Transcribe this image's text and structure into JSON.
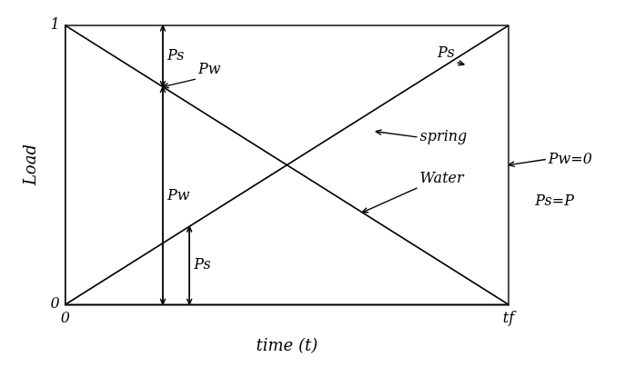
{
  "chart_data": {
    "type": "line",
    "x_label": "time (t)",
    "y_label": "Load",
    "x": [
      0,
      1
    ],
    "series": [
      {
        "name": "Water",
        "color": "#000000",
        "values": [
          1,
          0
        ]
      },
      {
        "name": "Spring",
        "color": "#000000",
        "values": [
          0,
          1
        ]
      }
    ],
    "xlim": [
      0,
      1
    ],
    "xticks": [
      0,
      {
        "value": 1,
        "label": "tf"
      }
    ],
    "ylim": [
      0,
      1
    ],
    "yticks": [
      0,
      1
    ],
    "grid": false,
    "dimensions": [
      {
        "label": "Ps",
        "x": 0.22,
        "from": 1,
        "to": 0.78
      },
      {
        "label": "Pw",
        "x": 0.22,
        "from": 0,
        "to": 0.78
      },
      {
        "label": "Ps",
        "x": 0.28,
        "from": 0,
        "to": 0.28
      }
    ],
    "annotations": [
      {
        "text": "Pw",
        "x": 0.3,
        "y": 0.84,
        "target": [
          0.22,
          0.78
        ]
      },
      {
        "text": "Ps",
        "x": 0.84,
        "y": 0.9,
        "target": [
          0.9,
          0.86
        ]
      },
      {
        "text": "spring",
        "x": 0.8,
        "y": 0.6,
        "target": [
          0.7,
          0.62
        ]
      },
      {
        "text": "Water",
        "x": 0.8,
        "y": 0.45,
        "target": [
          0.67,
          0.33
        ]
      },
      {
        "text": "Pw=0",
        "x": 1.09,
        "y": 0.52,
        "target": [
          1,
          0.5
        ]
      },
      {
        "text": "Ps=P",
        "x": 1.06,
        "y": 0.37
      }
    ]
  }
}
